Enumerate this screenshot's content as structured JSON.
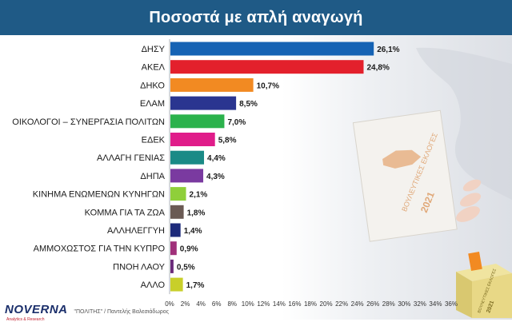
{
  "header": {
    "title": "Ποσοστά με απλή αναγωγή"
  },
  "footer": {
    "logo": "NOVERNA",
    "logo_sub": "Analytics & Research",
    "credit": "\"ΠΟΛΙΤΗΣ\" / Παντελής Βαλεσιάδωρος"
  },
  "decor": {
    "ballot_text": "ΒΟΥΛΕΥΤΙΚΕΣ ΕΚΛΟΓΕΣ",
    "ballot_year": "2021",
    "box_text": "ΒΟΥΛΕΥΤΙΚΕΣ ΕΚΛΟΓΕΣ",
    "box_year": "2021"
  },
  "chart_data": {
    "type": "bar",
    "orientation": "horizontal",
    "categories": [
      "ΔΗΣΥ",
      "ΑΚΕΛ",
      "ΔΗΚΟ",
      "ΕΛΑΜ",
      "ΟΙΚΟΛΟΓΟΙ – ΣΥΝΕΡΓΑΣΙΑ ΠΟΛΙΤΩΝ",
      "ΕΔΕΚ",
      "ΑΛΛΑΓΗ ΓΕΝΙΑΣ",
      "ΔΗΠΑ",
      "ΚΙΝΗΜΑ ΕΝΩΜΕΝΩΝ ΚΥΝΗΓΩΝ",
      "ΚΟΜΜΑ ΓΙΑ ΤΑ ΖΩΑ",
      "ΑΛΛΗΛΕΓΓΥΗ",
      "ΑΜΜΟΧΩΣΤΟΣ ΓΙΑ ΤΗΝ ΚΥΠΡΟ",
      "ΠΝΟΗ ΛΑΟΥ",
      "ΑΛΛΟ"
    ],
    "values": [
      26.1,
      24.8,
      10.7,
      8.5,
      7.0,
      5.8,
      4.4,
      4.3,
      2.1,
      1.8,
      1.4,
      0.9,
      0.5,
      1.7
    ],
    "value_labels": [
      "26,1%",
      "24,8%",
      "10,7%",
      "8,5%",
      "7,0%",
      "5,8%",
      "4,4%",
      "4,3%",
      "2,1%",
      "1,8%",
      "1,4%",
      "0,9%",
      "0,5%",
      "1,7%"
    ],
    "colors": [
      "#1663b4",
      "#e3202c",
      "#f28a22",
      "#2a3590",
      "#2bb24c",
      "#e01d8a",
      "#1a8a86",
      "#7a3aa0",
      "#8fcf3a",
      "#6a5a54",
      "#1d2a7a",
      "#a0307a",
      "#6a2a7a",
      "#c8cf2a"
    ],
    "xlim": [
      0,
      36
    ],
    "x_ticks": [
      "0%",
      "2%",
      "4%",
      "6%",
      "8%",
      "10%",
      "12%",
      "14%",
      "16%",
      "18%",
      "20%",
      "22%",
      "24%",
      "26%",
      "28%",
      "30%",
      "32%",
      "34%",
      "36%"
    ],
    "grid": false,
    "legend": "none"
  }
}
